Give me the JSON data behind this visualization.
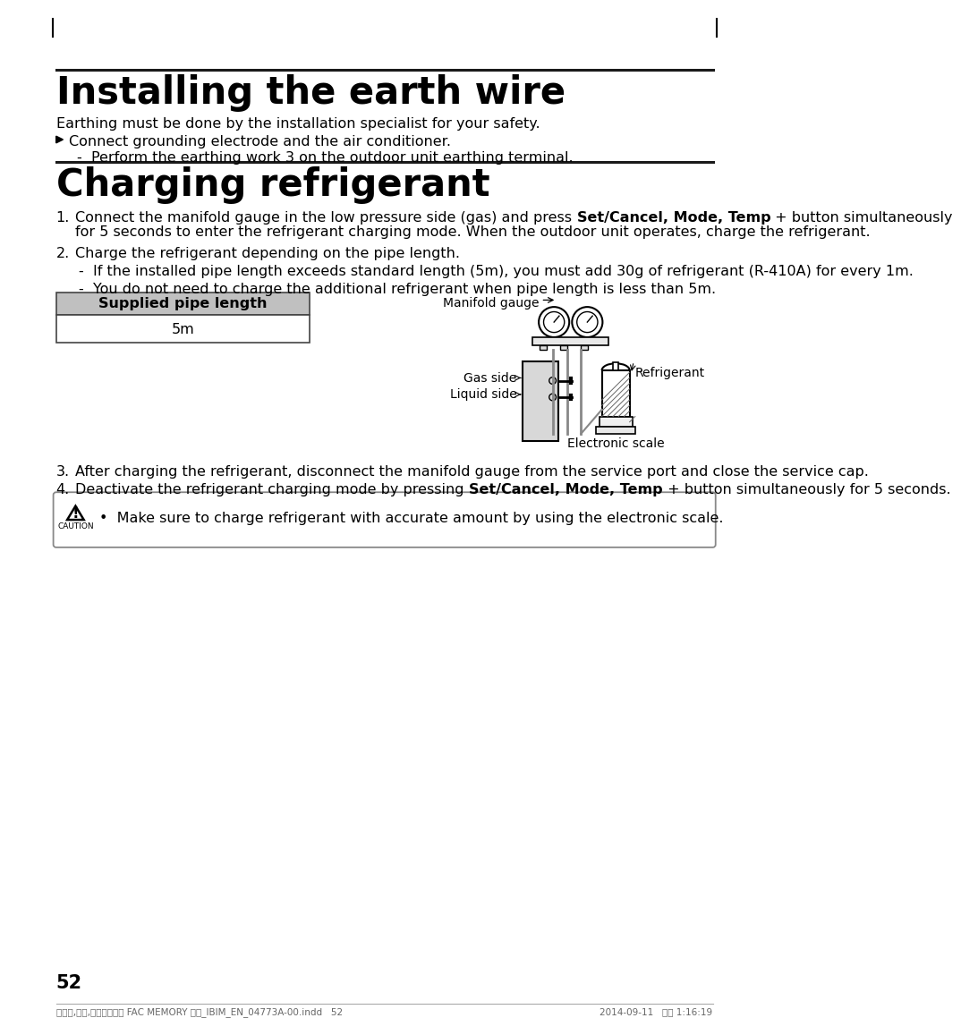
{
  "bg_color": "#ffffff",
  "page_number": "52",
  "footer_text": "사우디,인도,나이지리아항 FAC MEMORY 냉방_IBIM_EN_04773A-00.indd   52",
  "footer_right": "2014-09-11   오후 1:16:19",
  "section1_title": "Installing the earth wire",
  "section1_body": "Earthing must be done by the installation specialist for your safety.",
  "section1_bullet": "Connect grounding electrode and the air conditioner.",
  "section1_sub": "-  Perform the earthing work 3 on the outdoor unit earthing terminal.",
  "section2_title": "Charging refrigerant",
  "item1_line1_pre": "Connect the manifold gauge in the low pressure side (gas) and press ",
  "item1_line1_bold": "Set/Cancel, Mode, Temp",
  "item1_line1_post": " + button simultaneously",
  "item1_line2": "for 5 seconds to enter the refrigerant charging mode. When the outdoor unit operates, charge the refrigerant.",
  "item2_main": "Charge the refrigerant depending on the pipe length.",
  "item2_sub1": "-  If the installed pipe length exceeds standard length (5m), you must add 30g of refrigerant (R-410A) for every 1m.",
  "item2_sub2": "-  You do not need to charge the additional refrigerant when pipe length is less than 5m.",
  "table_header": "Supplied pipe length",
  "table_value": "5m",
  "img_label_manifold": "Manifold gauge",
  "img_label_gas": "Gas side",
  "img_label_liquid": "Liquid side",
  "img_label_refrigerant": "Refrigerant",
  "img_label_scale": "Electronic scale",
  "item3": "After charging the refrigerant, disconnect the manifold gauge from the service port and close the service cap.",
  "item4_pre": "Deactivate the refrigerant charging mode by pressing ",
  "item4_bold": "Set/Cancel, Mode, Temp",
  "item4_post": " + button simultaneously for 5 seconds.",
  "caution_text": "•  Make sure to charge refrigerant with accurate amount by using the electronic scale."
}
